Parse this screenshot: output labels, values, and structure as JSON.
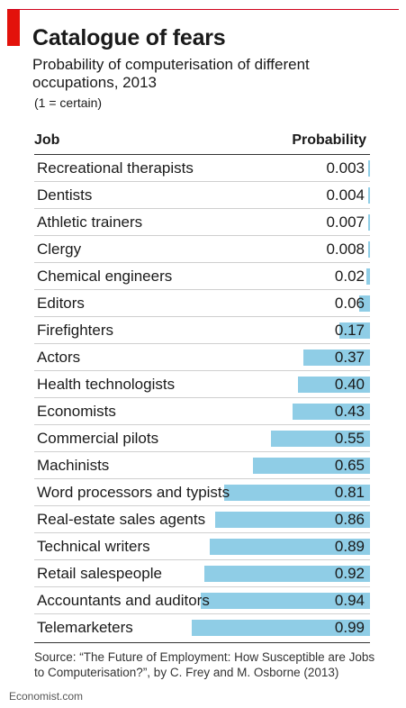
{
  "chart_data": {
    "type": "bar",
    "orientation": "horizontal",
    "title": "Catalogue of fears",
    "subtitle": "Probability of computerisation of different occupations, 2013",
    "note": "(1 = certain)",
    "column_headers": {
      "job": "Job",
      "probability": "Probability"
    },
    "xlim": [
      0,
      1
    ],
    "colors": {
      "bar": "#8fcde6",
      "accent": "#e3120b"
    },
    "rows": [
      {
        "job": "Recreational therapists",
        "label": "0.003",
        "value": 0.003
      },
      {
        "job": "Dentists",
        "label": "0.004",
        "value": 0.004
      },
      {
        "job": "Athletic trainers",
        "label": "0.007",
        "value": 0.007
      },
      {
        "job": "Clergy",
        "label": "0.008",
        "value": 0.008
      },
      {
        "job": "Chemical engineers",
        "label": "0.02",
        "value": 0.02
      },
      {
        "job": "Editors",
        "label": "0.06",
        "value": 0.06
      },
      {
        "job": "Firefighters",
        "label": "0.17",
        "value": 0.17
      },
      {
        "job": "Actors",
        "label": "0.37",
        "value": 0.37
      },
      {
        "job": "Health technologists",
        "label": "0.40",
        "value": 0.4
      },
      {
        "job": "Economists",
        "label": "0.43",
        "value": 0.43
      },
      {
        "job": "Commercial pilots",
        "label": "0.55",
        "value": 0.55
      },
      {
        "job": "Machinists",
        "label": "0.65",
        "value": 0.65
      },
      {
        "job": "Word processors and typists",
        "label": "0.81",
        "value": 0.81
      },
      {
        "job": "Real-estate sales agents",
        "label": "0.86",
        "value": 0.86
      },
      {
        "job": "Technical writers",
        "label": "0.89",
        "value": 0.89
      },
      {
        "job": "Retail salespeople",
        "label": "0.92",
        "value": 0.92
      },
      {
        "job": "Accountants and auditors",
        "label": "0.94",
        "value": 0.94
      },
      {
        "job": "Telemarketers",
        "label": "0.99",
        "value": 0.99
      }
    ],
    "source": "Source: “The Future of Employment: How Susceptible are Jobs to Computerisation?”, by C. Frey and M. Osborne (2013)"
  },
  "footer": {
    "brand": "Economist.com"
  }
}
